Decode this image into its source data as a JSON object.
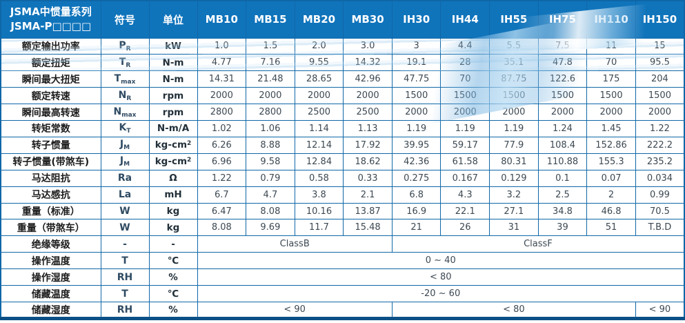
{
  "table": {
    "header": {
      "title_line1": "JSMA中惯量系列",
      "title_line2": "JSMA-P□□□□",
      "symbol_col": "符号",
      "unit_col": "单位",
      "models": [
        "MB10",
        "MB15",
        "MB20",
        "MB30",
        "IH30",
        "IH44",
        "IH55",
        "IH75",
        "IH110",
        "IH150"
      ]
    },
    "rows": [
      {
        "label": "额定输出功率",
        "symbol": {
          "base": "P",
          "sub": "R"
        },
        "unit": {
          "base": "kW"
        },
        "values": [
          "1.0",
          "1.5",
          "2.0",
          "3.0",
          "3",
          "4.4",
          "5.5",
          "7.5",
          "11",
          "15"
        ]
      },
      {
        "label": "额定扭矩",
        "symbol": {
          "base": "T",
          "sub": "R"
        },
        "unit": {
          "base": "N-m"
        },
        "values": [
          "4.77",
          "7.16",
          "9.55",
          "14.32",
          "19.1",
          "28",
          "35.1",
          "47.8",
          "70",
          "95.5"
        ]
      },
      {
        "label": "瞬间最大扭矩",
        "symbol": {
          "base": "T",
          "sub": "max"
        },
        "unit": {
          "base": "N-m"
        },
        "values": [
          "14.31",
          "21.48",
          "28.65",
          "42.96",
          "47.75",
          "70",
          "87.75",
          "122.6",
          "175",
          "204"
        ]
      },
      {
        "label": "额定转速",
        "symbol": {
          "base": "N",
          "sub": "R"
        },
        "unit": {
          "base": "rpm"
        },
        "values": [
          "2000",
          "2000",
          "2000",
          "2000",
          "1500",
          "1500",
          "1500",
          "1500",
          "1500",
          "1500"
        ]
      },
      {
        "label": "瞬间最高转速",
        "symbol": {
          "base": "N",
          "sub": "max"
        },
        "unit": {
          "base": "rpm"
        },
        "values": [
          "2800",
          "2800",
          "2500",
          "2500",
          "2000",
          "2000",
          "2000",
          "2000",
          "2000",
          "2000"
        ]
      },
      {
        "label": "转矩常数",
        "symbol": {
          "base": "K",
          "sub": "T"
        },
        "unit": {
          "base": "N-m/A"
        },
        "values": [
          "1.02",
          "1.06",
          "1.14",
          "1.13",
          "1.19",
          "1.19",
          "1.19",
          "1.24",
          "1.45",
          "1.22"
        ]
      },
      {
        "label": "转子惯量",
        "symbol": {
          "base": "J",
          "sub": "M"
        },
        "unit": {
          "base": "kg-cm",
          "sup": "2"
        },
        "values": [
          "6.26",
          "8.88",
          "12.14",
          "17.92",
          "39.95",
          "59.17",
          "77.9",
          "108.4",
          "152.86",
          "222.2"
        ]
      },
      {
        "label": "转子惯量(带煞车)",
        "symbol": {
          "base": "J",
          "sub": "M"
        },
        "unit": {
          "base": "kg-cm",
          "sup": "2"
        },
        "values": [
          "6.96",
          "9.58",
          "12.84",
          "18.62",
          "42.36",
          "61.58",
          "80.31",
          "110.88",
          "155.3",
          "235.2"
        ]
      },
      {
        "label": "马达阻抗",
        "symbol": {
          "base": "Ra"
        },
        "unit": {
          "base": "Ω"
        },
        "values": [
          "1.22",
          "0.79",
          "0.58",
          "0.33",
          "0.275",
          "0.167",
          "0.129",
          "0.1",
          "0.07",
          "0.034"
        ]
      },
      {
        "label": "马达感抗",
        "symbol": {
          "base": "La"
        },
        "unit": {
          "base": "mH"
        },
        "values": [
          "6.7",
          "4.7",
          "3.8",
          "2.1",
          "6.8",
          "4.3",
          "3.2",
          "2.5",
          "2",
          "0.99"
        ]
      },
      {
        "label": "重量（标准）",
        "symbol": {
          "base": "W"
        },
        "unit": {
          "base": "kg"
        },
        "values": [
          "6.47",
          "8.08",
          "10.16",
          "13.87",
          "16.9",
          "22.1",
          "27.1",
          "34.8",
          "46.8",
          "70.5"
        ]
      },
      {
        "label": "重量（带煞车）",
        "symbol": {
          "base": "W"
        },
        "unit": {
          "base": "kg"
        },
        "values": [
          "8.08",
          "9.69",
          "11.7",
          "15.48",
          "21",
          "26",
          "31",
          "39",
          "51",
          "T.B.D"
        ]
      },
      {
        "label": "绝缘等级",
        "symbol": {
          "base": "-"
        },
        "unit": {
          "base": "-"
        },
        "spans": [
          {
            "text": "ClassB",
            "span": 4
          },
          {
            "text": "ClassF",
            "span": 6
          }
        ]
      },
      {
        "label": "操作温度",
        "symbol": {
          "base": "T"
        },
        "unit": {
          "base": "℃"
        },
        "spans": [
          {
            "text": "0 ~ 40",
            "span": 10
          }
        ]
      },
      {
        "label": "操作湿度",
        "symbol": {
          "base": "RH"
        },
        "unit": {
          "base": "%"
        },
        "spans": [
          {
            "text": "< 80",
            "span": 10
          }
        ]
      },
      {
        "label": "储藏温度",
        "symbol": {
          "base": "T"
        },
        "unit": {
          "base": "℃"
        },
        "spans": [
          {
            "text": "-20 ~ 60",
            "span": 10
          }
        ]
      },
      {
        "label": "储藏湿度",
        "symbol": {
          "base": "RH"
        },
        "unit": {
          "base": "%"
        },
        "spans": [
          {
            "text": "< 90",
            "span": 4
          },
          {
            "text": "< 80",
            "span": 5
          },
          {
            "text": "< 90",
            "span": 1
          }
        ]
      }
    ]
  },
  "colors": {
    "header_bg": "#1074bb",
    "grid_border": "#0f67a7",
    "bottom_bar": "#0b5086",
    "swoosh_light_blue": "#96c8e9",
    "header_text": "#ffffff",
    "value_text": "#3c4852"
  }
}
